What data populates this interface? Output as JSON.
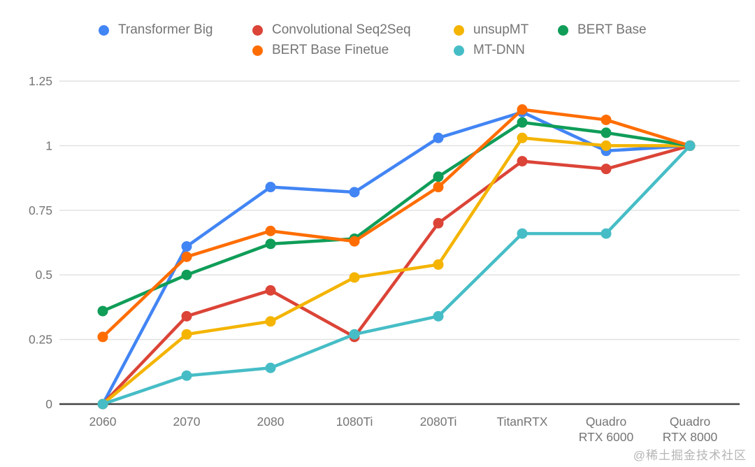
{
  "watermark": "@稀土掘金技术社区",
  "chart_data": {
    "type": "line",
    "title": "",
    "xlabel": "",
    "ylabel": "",
    "ylim": [
      0,
      1.25
    ],
    "grid": true,
    "legend_position": "top",
    "categories": [
      "2060",
      "2070",
      "2080",
      "1080Ti",
      "2080Ti",
      "TitanRTX",
      "Quadro RTX 6000",
      "Quadro RTX 8000"
    ],
    "x_labels_lines": [
      [
        "2060"
      ],
      [
        "2070"
      ],
      [
        "2080"
      ],
      [
        "1080Ti"
      ],
      [
        "2080Ti"
      ],
      [
        "TitanRTX"
      ],
      [
        "Quadro",
        "RTX 6000"
      ],
      [
        "Quadro",
        "RTX 8000"
      ]
    ],
    "y_ticks": [
      0,
      0.25,
      0.5,
      0.75,
      1,
      1.25
    ],
    "y_tick_labels": [
      "0",
      "0.25",
      "0.5",
      "0.75",
      "1",
      "1.25"
    ],
    "series": [
      {
        "name": "Transformer Big",
        "color": "#4285F4",
        "values": [
          0,
          0.61,
          0.84,
          0.82,
          1.03,
          1.13,
          0.98,
          1.0
        ]
      },
      {
        "name": "Convolutional Seq2Seq",
        "color": "#DB4437",
        "values": [
          0,
          0.34,
          0.44,
          0.26,
          0.7,
          0.94,
          0.91,
          1.0
        ]
      },
      {
        "name": "unsupMT",
        "color": "#F4B400",
        "values": [
          0,
          0.27,
          0.32,
          0.49,
          0.54,
          1.03,
          1.0,
          1.0
        ]
      },
      {
        "name": "BERT Base",
        "color": "#0F9D58",
        "values": [
          0.36,
          0.5,
          0.62,
          0.64,
          0.88,
          1.09,
          1.05,
          1.0
        ]
      },
      {
        "name": "BERT Base Finetue",
        "color": "#FF6D01",
        "values": [
          0.26,
          0.57,
          0.67,
          0.63,
          0.84,
          1.14,
          1.1,
          1.0
        ]
      },
      {
        "name": "MT-DNN",
        "color": "#46BDC6",
        "values": [
          0,
          0.11,
          0.14,
          0.27,
          0.34,
          0.66,
          0.66,
          1.0
        ]
      }
    ]
  }
}
